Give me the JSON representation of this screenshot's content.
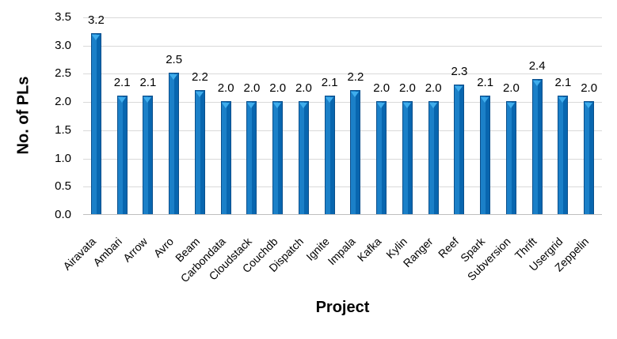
{
  "chart_data": {
    "type": "bar",
    "title": "",
    "xlabel": "Project",
    "ylabel": "No. of PLs",
    "categories": [
      "Airavata",
      "Ambari",
      "Arrow",
      "Avro",
      "Beam",
      "Carbondata",
      "Cloudstack",
      "Couchdb",
      "Dispatch",
      "Ignite",
      "Impala",
      "Kafka",
      "Kylin",
      "Ranger",
      "Reef",
      "Spark",
      "Subversion",
      "Thrift",
      "Usergrid",
      "Zeppelin"
    ],
    "values": [
      3.2,
      2.1,
      2.1,
      2.5,
      2.2,
      2.0,
      2.0,
      2.0,
      2.0,
      2.1,
      2.2,
      2.0,
      2.0,
      2.0,
      2.3,
      2.1,
      2.0,
      2.4,
      2.1,
      2.0
    ],
    "value_labels": [
      "3.2",
      "2.1",
      "2.1",
      "2.5",
      "2.2",
      "2.0",
      "2.0",
      "2.0",
      "2.0",
      "2.1",
      "2.2",
      "2.0",
      "2.0",
      "2.0",
      "2.3",
      "2.1",
      "2.0",
      "2.4",
      "2.1",
      "2.0"
    ],
    "ylim": [
      0,
      3.5
    ],
    "ytick_step": 0.5,
    "yticks": [
      "0.0",
      "0.5",
      "1.0",
      "1.5",
      "2.0",
      "2.5",
      "3.0",
      "3.5"
    ],
    "grid": true,
    "legend": false,
    "colors": {
      "bar_fill": "#1b80c8",
      "bar_fill_dark": "#0866af",
      "bar_border": "#0a4f8c",
      "bar_cap": "#3fadec",
      "gridline": "#d9d9d9",
      "axis_line": "#bfbfbf",
      "text": "#000000"
    }
  }
}
